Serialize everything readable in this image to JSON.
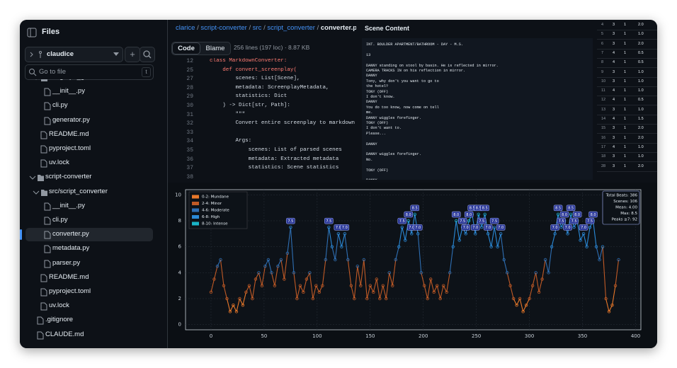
{
  "sidebar": {
    "title": "Files",
    "branch": "claudice",
    "search_placeholder": "Go to file",
    "search_shortcut": "t",
    "tree": [
      {
        "label": "src/graph_generator",
        "level": 1,
        "kind": "folder"
      },
      {
        "label": "__init__.py",
        "level": 2,
        "kind": "file"
      },
      {
        "label": "cli.py",
        "level": 2,
        "kind": "file"
      },
      {
        "label": "generator.py",
        "level": 2,
        "kind": "file"
      },
      {
        "label": "README.md",
        "level": 1,
        "kind": "file"
      },
      {
        "label": "pyproject.toml",
        "level": 1,
        "kind": "file"
      },
      {
        "label": "uv.lock",
        "level": 1,
        "kind": "file"
      },
      {
        "label": "script-converter",
        "level": 0,
        "kind": "folder"
      },
      {
        "label": "src/script_converter",
        "level": 1,
        "kind": "folder"
      },
      {
        "label": "__init__.py",
        "level": 2,
        "kind": "file"
      },
      {
        "label": "cli.py",
        "level": 2,
        "kind": "file"
      },
      {
        "label": "converter.py",
        "level": 2,
        "kind": "file",
        "selected": true
      },
      {
        "label": "metadata.py",
        "level": 2,
        "kind": "file"
      },
      {
        "label": "parser.py",
        "level": 2,
        "kind": "file"
      },
      {
        "label": "README.md",
        "level": 1,
        "kind": "file"
      },
      {
        "label": "pyproject.toml",
        "level": 1,
        "kind": "file"
      },
      {
        "label": "uv.lock",
        "level": 1,
        "kind": "file"
      },
      {
        "label": ".gitignore",
        "level": 0,
        "kind": "file"
      },
      {
        "label": "CLAUDE.md",
        "level": 0,
        "kind": "file"
      }
    ]
  },
  "code": {
    "breadcrumb": [
      "clarice",
      "script-converter",
      "src",
      "script_converter"
    ],
    "file": "converter.py",
    "tabs": [
      "Code",
      "Blame"
    ],
    "info": "256 lines (197 loc) · 8.87 KB",
    "lines": [
      {
        "n": "12",
        "text": "class MarkdownConverter:"
      },
      {
        "n": "25",
        "text": "    def convert_screenplay("
      },
      {
        "n": "27",
        "text": "        scenes: List[Scene],"
      },
      {
        "n": "28",
        "text": "        metadata: ScreenplayMetadata,"
      },
      {
        "n": "29",
        "text": "        statistics: Dict"
      },
      {
        "n": "30",
        "text": "    ) -> Dict[str, Path]:"
      },
      {
        "n": "31",
        "text": "        \"\"\""
      },
      {
        "n": "32",
        "text": "        Convert entire screenplay to markdown"
      },
      {
        "n": "33"
      },
      {
        "n": "34",
        "text": "        Args:"
      },
      {
        "n": "35",
        "text": "            scenes: List of parsed scenes"
      },
      {
        "n": "36",
        "text": "            metadata: Extracted metadata"
      },
      {
        "n": "37",
        "text": "            statistics: Scene statistics"
      },
      {
        "n": "38"
      }
    ]
  },
  "scene": {
    "title": "Scene Content",
    "lines": [
      "INT. BOULDER APARTMENT/BATHROOM - DAY - M.S.",
      null,
      "13",
      null,
      "DANNY standing on stool by basin. He is reflected in mirror.",
      "CAMERA TRACKS IN on his reflection in mirror.",
      "DANNY",
      "Tony, why don't you want to go to",
      "the hotel?",
      "TONY (OFF)",
      "I don't know.",
      "DANNY",
      "You do too know, now come on tell",
      "me.",
      "DANNY wiggles forefinger.",
      "TONY (OFF)",
      "I don't want to.",
      "Please...",
      null,
      "DANNY",
      null,
      "DANNY wiggles forefinger.",
      "No.",
      null,
      "TONY (OFF)",
      null,
      "DANNY"
    ]
  },
  "table": {
    "rows": [
      [
        "4",
        "3",
        "1",
        "2.0"
      ],
      [
        "5",
        "3",
        "1",
        "1.0"
      ],
      [
        "6",
        "3",
        "1",
        "2.0"
      ],
      [
        "7",
        "4",
        "1",
        "0.5"
      ],
      [
        "8",
        "4",
        "1",
        "0.5"
      ],
      [
        "9",
        "3",
        "1",
        "1.0"
      ],
      [
        "10",
        "3",
        "1",
        "1.0"
      ],
      [
        "11",
        "4",
        "1",
        "1.0"
      ],
      [
        "12",
        "4",
        "1",
        "0.5"
      ],
      [
        "13",
        "3",
        "1",
        "1.0"
      ],
      [
        "14",
        "4",
        "1",
        "1.5"
      ],
      [
        "15",
        "3",
        "1",
        "2.0"
      ],
      [
        "16",
        "3",
        "1",
        "2.0"
      ],
      [
        "17",
        "4",
        "1",
        "1.0"
      ],
      [
        "18",
        "3",
        "1",
        "1.0"
      ],
      [
        "28",
        "3",
        "1",
        "2.0"
      ]
    ]
  },
  "chart_data": {
    "type": "line",
    "x": [
      0,
      3,
      6,
      9,
      12,
      15,
      18,
      21,
      24,
      27,
      30,
      33,
      36,
      39,
      42,
      45,
      48,
      51,
      54,
      57,
      60,
      63,
      66,
      69,
      72,
      75,
      78,
      81,
      84,
      87,
      90,
      93,
      96,
      99,
      102,
      105,
      108,
      111,
      114,
      117,
      120,
      123,
      126,
      129,
      132,
      135,
      138,
      141,
      144,
      147,
      150,
      153,
      156,
      159,
      162,
      165,
      168,
      171,
      174,
      177,
      180,
      183,
      186,
      189,
      192,
      195,
      198,
      201,
      204,
      207,
      210,
      213,
      216,
      219,
      222,
      225,
      228,
      231,
      234,
      237,
      240,
      243,
      246,
      249,
      252,
      255,
      258,
      261,
      264,
      267,
      270,
      273,
      276,
      279,
      282,
      285,
      288,
      291,
      294,
      297,
      300,
      303,
      306,
      309,
      312,
      315,
      318,
      321,
      324,
      327,
      330,
      333,
      336,
      339,
      342,
      345,
      348,
      351,
      354,
      357,
      360,
      363,
      366,
      369,
      372,
      375,
      378,
      381,
      384
    ],
    "values": [
      2.5,
      3.5,
      4.5,
      5,
      3,
      2,
      1,
      1.5,
      1,
      2,
      1.5,
      2.5,
      3,
      2,
      3.5,
      4,
      3,
      4.5,
      5,
      4,
      3,
      4.5,
      5,
      3.5,
      5.5,
      7.5,
      4,
      2,
      3,
      2.5,
      3.5,
      4,
      2,
      3,
      2.5,
      3,
      5,
      7.5,
      6,
      5,
      7,
      6,
      7,
      5,
      3,
      2,
      4.5,
      3,
      5,
      2,
      3,
      2.5,
      3.5,
      2,
      3,
      2,
      4,
      3,
      5,
      6,
      7.5,
      6.5,
      8,
      7,
      8.5,
      7,
      4,
      3,
      2,
      3.5,
      2.5,
      3,
      2,
      3,
      2.5,
      4,
      6,
      8,
      6.5,
      7.5,
      7,
      8,
      8.5,
      7,
      8.5,
      7.5,
      8.5,
      7,
      6,
      7.5,
      6,
      7,
      5,
      4,
      3,
      2,
      1.5,
      2,
      1,
      1.5,
      2,
      3,
      4,
      2.5,
      3.5,
      5,
      4,
      6,
      7,
      8.5,
      7.5,
      8,
      7,
      8.5,
      7.5,
      8,
      6.5,
      7,
      6,
      7.5,
      8,
      6,
      5,
      6,
      2,
      1,
      1.5,
      3,
      5
    ],
    "value_labels": [
      null,
      null,
      null,
      null,
      null,
      null,
      null,
      null,
      null,
      null,
      null,
      null,
      null,
      null,
      null,
      null,
      null,
      null,
      null,
      null,
      null,
      null,
      null,
      null,
      null,
      "7.5",
      null,
      null,
      null,
      null,
      null,
      null,
      null,
      null,
      null,
      null,
      null,
      "7.5",
      null,
      null,
      "7.0",
      null,
      "7.0",
      null,
      null,
      null,
      null,
      null,
      null,
      null,
      null,
      null,
      null,
      null,
      null,
      null,
      null,
      null,
      null,
      null,
      "7.5",
      null,
      "8.0",
      "7.0",
      "8.5",
      "7.0",
      null,
      null,
      null,
      null,
      null,
      null,
      null,
      null,
      null,
      null,
      null,
      "8.0",
      null,
      "7.5",
      "7.0",
      "8.0",
      "8.5",
      "7.0",
      "8.5",
      "7.5",
      "8.5",
      "7.0",
      null,
      "7.5",
      null,
      "7.0",
      null,
      null,
      null,
      null,
      null,
      null,
      null,
      null,
      null,
      null,
      null,
      null,
      null,
      null,
      null,
      null,
      "7.0",
      "8.5",
      "7.5",
      "8.0",
      "7.0",
      "8.5",
      "7.5",
      "8.0",
      null,
      "7.0",
      null,
      "7.5",
      "8.0",
      null,
      null,
      null,
      null,
      null,
      null,
      null,
      null
    ],
    "legend": [
      {
        "name": "0-2: Mundane",
        "color": "#e8782a"
      },
      {
        "name": "2-4: Minor",
        "color": "#c05a26"
      },
      {
        "name": "4-6: Moderate",
        "color": "#2f6fb3"
      },
      {
        "name": "6-8: High",
        "color": "#2a8ad8"
      },
      {
        "name": "8-10: Intense",
        "color": "#1ab5c8"
      }
    ],
    "stats": [
      "Total Beats: 386",
      "Scenes: 106",
      "Mean: 4.00",
      "Max: 8.5",
      "Peaks ≥7: 92"
    ],
    "xlim": [
      -24,
      405
    ],
    "ylim": [
      -0.4,
      10.4
    ],
    "xticks": [
      0,
      50,
      100,
      150,
      200,
      250,
      300,
      350,
      400
    ],
    "yticks": [
      0,
      2,
      4,
      6,
      8,
      10
    ],
    "grid": true
  }
}
